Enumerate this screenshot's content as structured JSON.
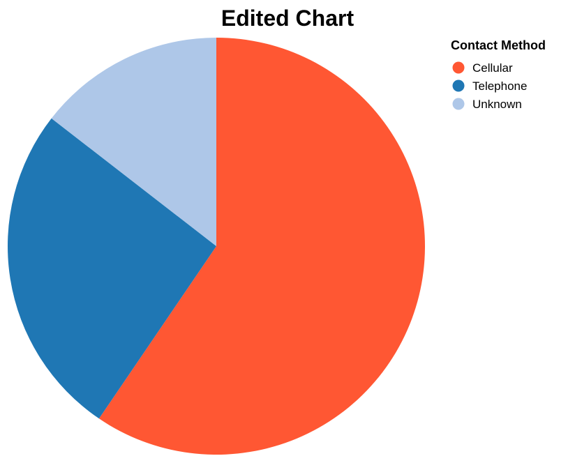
{
  "chart_data": {
    "type": "pie",
    "title": "Edited Chart",
    "legend_title": "Contact Method",
    "legend_position": "top-right",
    "categories": [
      "Cellular",
      "Telephone",
      "Unknown"
    ],
    "values": [
      59.5,
      26.0,
      14.5
    ],
    "colors": [
      "#ff5733",
      "#1f77b4",
      "#aec7e8"
    ],
    "start_angle_deg": 0,
    "direction": "clockwise"
  }
}
